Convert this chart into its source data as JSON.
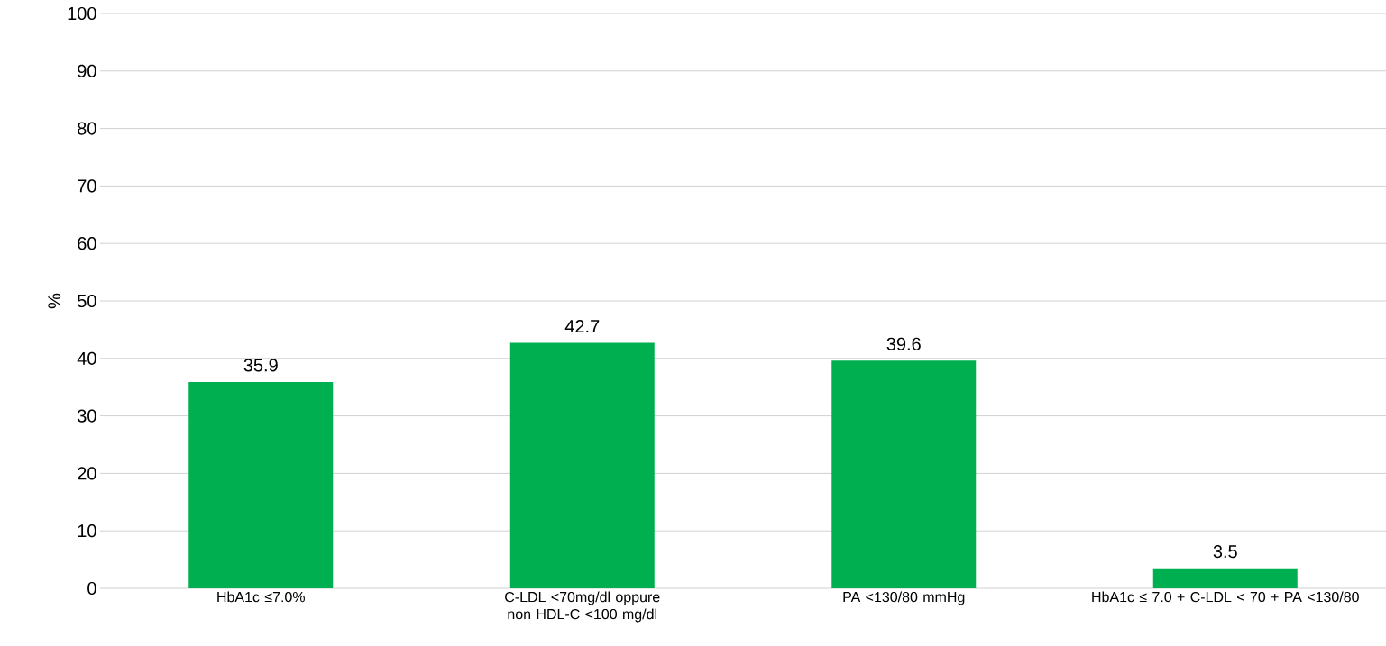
{
  "chart_data": {
    "type": "bar",
    "ylabel": "%",
    "categories": [
      "HbA1c ≤7.0%",
      "C-LDL <70mg/dl oppure non HDL-C <100 mg/dl",
      "PA <130/80 mmHg",
      "HbA1c ≤ 7.0 + C-LDL < 70 + PA <130/80"
    ],
    "values": [
      35.9,
      42.7,
      39.6,
      3.5
    ],
    "value_labels": [
      "35.9",
      "42.7",
      "39.6",
      "3.5"
    ],
    "color": "#00b050",
    "ylim": [
      0,
      100
    ],
    "yticks": [
      0,
      10,
      20,
      30,
      40,
      50,
      60,
      70,
      80,
      90,
      100
    ],
    "grid": "y"
  }
}
